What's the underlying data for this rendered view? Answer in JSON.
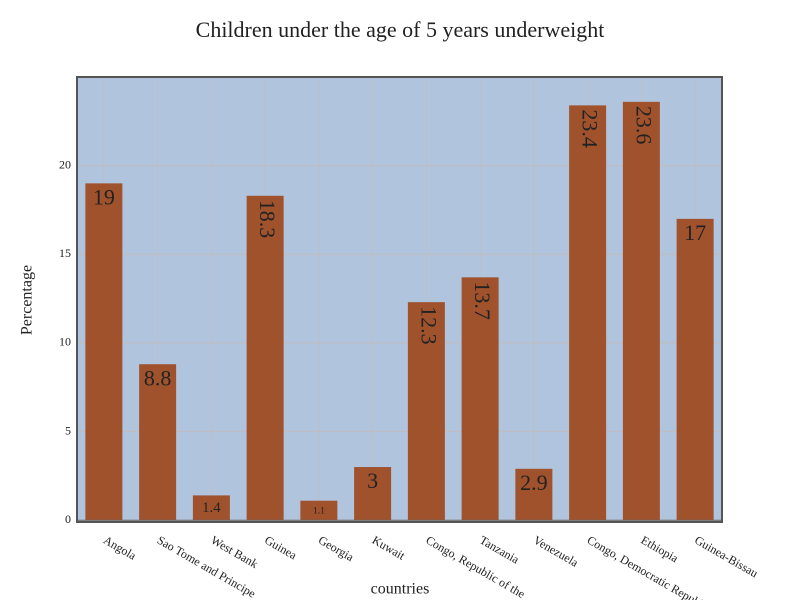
{
  "chart_data": {
    "type": "bar",
    "title": "Children under the age of 5 years underweight",
    "x_label": "countries",
    "y_label": "Percentage",
    "categories": [
      "Angola",
      "Sao Tome and Principe",
      "West Bank",
      "Guinea",
      "Georgia",
      "Kuwait",
      "Congo, Republic of the",
      "Tanzania",
      "Venezuela",
      "Congo, Democratic Republic of the",
      "Ethiopia",
      "Guinea-Bissau"
    ],
    "values": [
      19,
      8.8,
      1.4,
      18.3,
      1.1,
      3,
      12.3,
      13.7,
      2.9,
      23.4,
      23.6,
      17
    ],
    "color": "#a0522d",
    "background": "#b0c4de",
    "ylim": [
      -0.1,
      25
    ],
    "yticks": [
      0,
      5,
      10,
      15,
      20
    ],
    "grid": true
  }
}
